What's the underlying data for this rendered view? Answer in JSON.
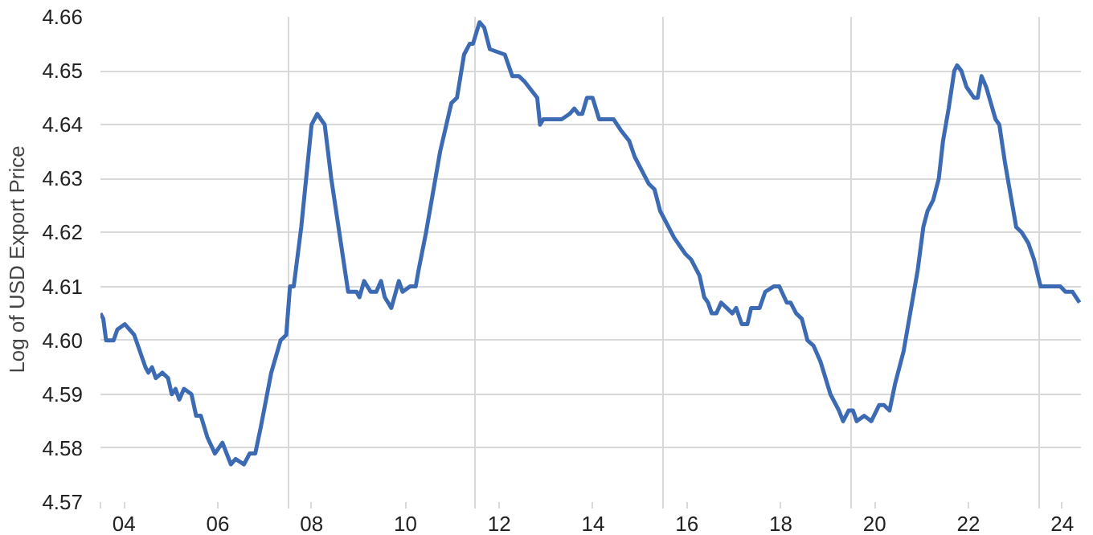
{
  "chart_data": {
    "type": "line",
    "ylabel": "Log of USD Export Price",
    "x": [
      2003.5,
      2003.56,
      2003.62,
      2003.78,
      2003.86,
      2004.02,
      2004.22,
      2004.46,
      2004.52,
      2004.6,
      2004.68,
      2004.82,
      2004.94,
      2005.02,
      2005.1,
      2005.18,
      2005.28,
      2005.44,
      2005.54,
      2005.64,
      2005.78,
      2005.94,
      2006.1,
      2006.28,
      2006.38,
      2006.56,
      2006.68,
      2006.8,
      2006.92,
      2007.14,
      2007.34,
      2007.46,
      2007.54,
      2007.62,
      2007.78,
      2008.0,
      2008.12,
      2008.28,
      2008.42,
      2008.78,
      2008.96,
      2009.02,
      2009.12,
      2009.26,
      2009.38,
      2009.48,
      2009.56,
      2009.7,
      2009.86,
      2009.94,
      2010.1,
      2010.22,
      2010.28,
      2010.44,
      2010.74,
      2010.98,
      2011.1,
      2011.25,
      2011.37,
      2011.44,
      2011.58,
      2011.68,
      2011.8,
      2012.12,
      2012.28,
      2012.42,
      2012.54,
      2012.72,
      2012.81,
      2012.87,
      2012.94,
      2013.09,
      2013.17,
      2013.33,
      2013.5,
      2013.6,
      2013.69,
      2013.77,
      2013.87,
      2013.99,
      2014.13,
      2014.32,
      2014.44,
      2014.59,
      2014.77,
      2014.89,
      2015.07,
      2015.19,
      2015.31,
      2015.43,
      2015.55,
      2015.73,
      2015.97,
      2016.09,
      2016.27,
      2016.37,
      2016.45,
      2016.53,
      2016.63,
      2016.73,
      2016.85,
      2016.97,
      2017.05,
      2017.17,
      2017.29,
      2017.37,
      2017.55,
      2017.67,
      2017.85,
      2017.97,
      2018.13,
      2018.21,
      2018.33,
      2018.45,
      2018.57,
      2018.7,
      2018.85,
      2019.06,
      2019.24,
      2019.33,
      2019.45,
      2019.54,
      2019.62,
      2019.78,
      2019.93,
      2020.1,
      2020.2,
      2020.32,
      2020.44,
      2020.62,
      2020.8,
      2020.92,
      2021.04,
      2021.13,
      2021.25,
      2021.37,
      2021.46,
      2021.58,
      2021.7,
      2021.76,
      2021.85,
      2021.96,
      2022.12,
      2022.2,
      2022.28,
      2022.38,
      2022.48,
      2022.58,
      2022.66,
      2022.78,
      2022.94,
      2023.02,
      2023.14,
      2023.28,
      2023.4,
      2023.54,
      2023.68,
      2023.96,
      2024.07,
      2024.22,
      2024.37
    ],
    "series": [
      {
        "color": "#3d6bb3",
        "values": [
          4.605,
          4.604,
          4.6,
          4.6,
          4.602,
          4.603,
          4.601,
          4.595,
          4.594,
          4.595,
          4.593,
          4.594,
          4.593,
          4.59,
          4.591,
          4.589,
          4.591,
          4.59,
          4.586,
          4.586,
          4.582,
          4.579,
          4.581,
          4.577,
          4.578,
          4.577,
          4.579,
          4.579,
          4.584,
          4.594,
          4.6,
          4.601,
          4.61,
          4.61,
          4.621,
          4.64,
          4.642,
          4.64,
          4.63,
          4.609,
          4.609,
          4.608,
          4.611,
          4.609,
          4.609,
          4.611,
          4.608,
          4.606,
          4.611,
          4.609,
          4.61,
          4.61,
          4.613,
          4.62,
          4.635,
          4.644,
          4.645,
          4.653,
          4.655,
          4.655,
          4.659,
          4.658,
          4.654,
          4.653,
          4.649,
          4.649,
          4.648,
          4.646,
          4.645,
          4.64,
          4.641,
          4.641,
          4.641,
          4.641,
          4.642,
          4.643,
          4.642,
          4.642,
          4.645,
          4.645,
          4.641,
          4.641,
          4.641,
          4.639,
          4.637,
          4.634,
          4.631,
          4.629,
          4.628,
          4.624,
          4.622,
          4.619,
          4.616,
          4.615,
          4.612,
          4.608,
          4.607,
          4.605,
          4.605,
          4.607,
          4.606,
          4.605,
          4.606,
          4.603,
          4.603,
          4.606,
          4.606,
          4.609,
          4.61,
          4.61,
          4.607,
          4.607,
          4.605,
          4.604,
          4.6,
          4.599,
          4.596,
          4.59,
          4.587,
          4.585,
          4.587,
          4.587,
          4.585,
          4.586,
          4.585,
          4.588,
          4.588,
          4.587,
          4.592,
          4.598,
          4.607,
          4.613,
          4.621,
          4.624,
          4.626,
          4.63,
          4.637,
          4.643,
          4.65,
          4.651,
          4.65,
          4.647,
          4.645,
          4.645,
          4.649,
          4.647,
          4.644,
          4.641,
          4.64,
          4.633,
          4.625,
          4.621,
          4.62,
          4.618,
          4.615,
          4.61,
          4.61,
          4.61,
          4.609,
          4.609,
          4.607
        ]
      }
    ],
    "xlim": [
      2003.5,
      2024.4
    ],
    "xticks": [
      {
        "value": 2003.5,
        "label": null
      },
      {
        "value": 2004,
        "label": "04"
      },
      {
        "value": 2006,
        "label": "06"
      },
      {
        "value": 2007.5,
        "label": null
      },
      {
        "value": 2008,
        "label": "08"
      },
      {
        "value": 2010,
        "label": "10"
      },
      {
        "value": 2011.5,
        "label": null
      },
      {
        "value": 2012,
        "label": "12"
      },
      {
        "value": 2014,
        "label": "14"
      },
      {
        "value": 2015.5,
        "label": null
      },
      {
        "value": 2016,
        "label": "16"
      },
      {
        "value": 2018,
        "label": "18"
      },
      {
        "value": 2019.5,
        "label": null
      },
      {
        "value": 2020,
        "label": "20"
      },
      {
        "value": 2022,
        "label": "22"
      },
      {
        "value": 2023.5,
        "label": null
      },
      {
        "value": 2024,
        "label": "24"
      }
    ],
    "ylim": [
      4.57,
      4.66
    ],
    "yticks": [
      4.57,
      4.58,
      4.59,
      {
        "value": 4.6,
        "label": "4.60"
      },
      4.61,
      4.62,
      4.63,
      4.64,
      4.65,
      4.66
    ],
    "grid": true,
    "line_style": "solid",
    "marker": "none"
  }
}
